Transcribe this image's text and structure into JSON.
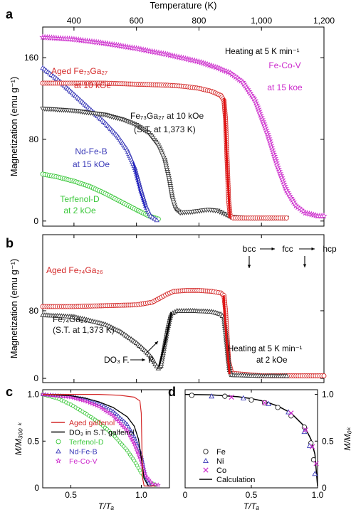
{
  "figure": {
    "panel_labels": [
      "a",
      "b",
      "c",
      "d"
    ]
  },
  "chart_data": [
    {
      "id": "a",
      "type": "scatter",
      "xlabel": "Temperature (K)",
      "ylabel": "Magnetization (emu g⁻¹)",
      "xlim": [
        300,
        1200
      ],
      "ylim": [
        -5,
        190
      ],
      "xticks": [
        400,
        600,
        800,
        1000,
        1200
      ],
      "xtick_labels": [
        "400",
        "600",
        "800",
        "1,000",
        "1,200"
      ],
      "yticks": [
        0,
        80,
        160
      ],
      "annotation": "Heating at 5 K min⁻¹",
      "series": [
        {
          "label_lines": [
            "Aged Fe₇₃Ga₂₇",
            "at 10 kOe"
          ],
          "color": "#d42a2a",
          "marker": "circle",
          "points": [
            [
              300,
              135
            ],
            [
              400,
              135
            ],
            [
              500,
              135
            ],
            [
              600,
              134
            ],
            [
              700,
              133
            ],
            [
              750,
              132
            ],
            [
              800,
              130
            ],
            [
              840,
              127
            ],
            [
              870,
              123
            ],
            [
              880,
              118
            ],
            [
              885,
              100
            ],
            [
              890,
              60
            ],
            [
              895,
              20
            ],
            [
              900,
              5
            ],
            [
              910,
              3
            ],
            [
              1000,
              3
            ],
            [
              1080,
              3
            ]
          ]
        },
        {
          "label_lines": [
            "Fe₇₃Ga₂₇ at 10 kOe",
            "(S.T. at 1,373 K)"
          ],
          "color": "#333333",
          "marker": "triangle-down",
          "points": [
            [
              300,
              110
            ],
            [
              400,
              108
            ],
            [
              500,
              104
            ],
            [
              560,
              99
            ],
            [
              600,
              94
            ],
            [
              640,
              86
            ],
            [
              670,
              74
            ],
            [
              690,
              60
            ],
            [
              705,
              40
            ],
            [
              715,
              22
            ],
            [
              725,
              12
            ],
            [
              740,
              8
            ],
            [
              780,
              9
            ],
            [
              830,
              11
            ],
            [
              860,
              10
            ],
            [
              880,
              7
            ],
            [
              900,
              4
            ],
            [
              950,
              3
            ],
            [
              1080,
              3
            ]
          ]
        },
        {
          "label_lines": [
            "Nd-Fe-B",
            "at 15 kOe"
          ],
          "color": "#3a3ab8",
          "marker": "triangle-up",
          "points": [
            [
              300,
              150
            ],
            [
              350,
              138
            ],
            [
              400,
              124
            ],
            [
              450,
              110
            ],
            [
              500,
              96
            ],
            [
              540,
              83
            ],
            [
              570,
              70
            ],
            [
              595,
              52
            ],
            [
              615,
              30
            ],
            [
              630,
              15
            ],
            [
              645,
              5
            ],
            [
              665,
              1
            ]
          ]
        },
        {
          "label_lines": [
            "Terfenol-D",
            "at 2 kOe"
          ],
          "color": "#3cc83c",
          "marker": "circle",
          "points": [
            [
              300,
              46
            ],
            [
              350,
              43
            ],
            [
              400,
              39
            ],
            [
              450,
              34
            ],
            [
              500,
              27
            ],
            [
              550,
              19
            ],
            [
              600,
              11
            ],
            [
              640,
              5
            ],
            [
              670,
              2
            ]
          ]
        },
        {
          "label_lines": [
            "Fe-Co-V",
            "at 15 koe"
          ],
          "color": "#cc2acc",
          "marker": "star",
          "points": [
            [
              300,
              180
            ],
            [
              400,
              178
            ],
            [
              500,
              174
            ],
            [
              600,
              169
            ],
            [
              700,
              163
            ],
            [
              800,
              156
            ],
            [
              860,
              150
            ],
            [
              900,
              145
            ],
            [
              940,
              136
            ],
            [
              980,
              118
            ],
            [
              1020,
              85
            ],
            [
              1050,
              55
            ],
            [
              1080,
              30
            ],
            [
              1110,
              15
            ],
            [
              1140,
              8
            ],
            [
              1180,
              5
            ],
            [
              1200,
              5
            ]
          ]
        }
      ]
    },
    {
      "id": "b",
      "type": "scatter",
      "ylabel": "Magnetization (emu g⁻¹)",
      "xlim": [
        300,
        1200
      ],
      "ylim": [
        -5,
        170
      ],
      "yticks": [
        0,
        80
      ],
      "annotation_lines": [
        "Heating at 5 K min⁻¹",
        "at 2 kOe"
      ],
      "phases": [
        "bcc",
        "fcc",
        "hcp"
      ],
      "pointer": [
        "DO₃ F.",
        "P."
      ],
      "series": [
        {
          "label": "Aged Fe₇₄Ga₂₆",
          "color": "#d42a2a",
          "marker": "circle",
          "points": [
            [
              300,
              85
            ],
            [
              400,
              85
            ],
            [
              500,
              86
            ],
            [
              600,
              87
            ],
            [
              650,
              90
            ],
            [
              680,
              96
            ],
            [
              700,
              100
            ],
            [
              720,
              103
            ],
            [
              760,
              104
            ],
            [
              800,
              104
            ],
            [
              840,
              103
            ],
            [
              870,
              101
            ],
            [
              880,
              98
            ],
            [
              885,
              80
            ],
            [
              890,
              50
            ],
            [
              895,
              20
            ],
            [
              905,
              6
            ],
            [
              1000,
              3
            ],
            [
              1200,
              3
            ]
          ]
        },
        {
          "label_lines": [
            "Fe₇₄Ga₂₆",
            "(S.T. at 1,373 K)"
          ],
          "color": "#333333",
          "marker": "triangle-up",
          "points": [
            [
              300,
              75
            ],
            [
              400,
              73
            ],
            [
              500,
              64
            ],
            [
              550,
              55
            ],
            [
              600,
              42
            ],
            [
              630,
              32
            ],
            [
              650,
              24
            ],
            [
              660,
              17
            ],
            [
              670,
              12
            ],
            [
              678,
              15
            ],
            [
              690,
              40
            ],
            [
              700,
              60
            ],
            [
              710,
              76
            ],
            [
              730,
              80
            ],
            [
              780,
              80
            ],
            [
              840,
              79
            ],
            [
              870,
              76
            ],
            [
              880,
              72
            ],
            [
              885,
              55
            ],
            [
              892,
              30
            ],
            [
              898,
              10
            ],
            [
              905,
              4
            ],
            [
              1000,
              3
            ],
            [
              1080,
              3
            ]
          ]
        }
      ]
    },
    {
      "id": "c",
      "type": "line",
      "xlabel": "T/Tₐ",
      "ylabel": "M/M₃₀₀ ₖ",
      "xlim": [
        0.3,
        1.2
      ],
      "ylim": [
        0,
        1.05
      ],
      "xticks": [
        0.5,
        1.0
      ],
      "xtick_labels": [
        "0.5",
        "1.0"
      ],
      "yticks": [
        0,
        0.5,
        1.0
      ],
      "ytick_labels": [
        "0",
        "0.5",
        "1.0"
      ],
      "legend": "top-left",
      "series": [
        {
          "name": "Aged galfenol",
          "color": "#d42a2a",
          "marker": "none",
          "points": [
            [
              0.3,
              1
            ],
            [
              0.5,
              1
            ],
            [
              0.7,
              1
            ],
            [
              0.85,
              0.99
            ],
            [
              0.95,
              0.97
            ],
            [
              0.99,
              0.93
            ],
            [
              1.0,
              0.8
            ],
            [
              1.005,
              0.4
            ],
            [
              1.01,
              0.1
            ],
            [
              1.02,
              0.02
            ],
            [
              1.1,
              0.02
            ]
          ]
        },
        {
          "name": "DO₃ in S.T. galfenol",
          "color": "#000000",
          "marker": "none",
          "points": [
            [
              0.3,
              1
            ],
            [
              0.5,
              0.985
            ],
            [
              0.6,
              0.96
            ],
            [
              0.7,
              0.92
            ],
            [
              0.8,
              0.86
            ],
            [
              0.9,
              0.76
            ],
            [
              0.95,
              0.66
            ],
            [
              0.98,
              0.52
            ],
            [
              1.0,
              0.32
            ],
            [
              1.02,
              0.1
            ],
            [
              1.05,
              0.02
            ],
            [
              1.1,
              0.02
            ]
          ]
        },
        {
          "name": "Terfenol-D",
          "color": "#3cc83c",
          "marker": "circle",
          "points": [
            [
              0.3,
              1
            ],
            [
              0.4,
              0.96
            ],
            [
              0.5,
              0.89
            ],
            [
              0.6,
              0.8
            ],
            [
              0.7,
              0.7
            ],
            [
              0.8,
              0.57
            ],
            [
              0.9,
              0.4
            ],
            [
              0.95,
              0.29
            ],
            [
              1.0,
              0.16
            ],
            [
              1.05,
              0.07
            ],
            [
              1.1,
              0.03
            ]
          ]
        },
        {
          "name": "Nd-Fe-B",
          "color": "#3a3ab8",
          "marker": "triangle-up",
          "points": [
            [
              0.3,
              1
            ],
            [
              0.5,
              0.98
            ],
            [
              0.6,
              0.95
            ],
            [
              0.7,
              0.9
            ],
            [
              0.8,
              0.82
            ],
            [
              0.9,
              0.68
            ],
            [
              0.95,
              0.55
            ],
            [
              1.0,
              0.35
            ],
            [
              1.03,
              0.12
            ],
            [
              1.06,
              0.03
            ]
          ]
        },
        {
          "name": "Fe-Co-V",
          "color": "#cc2acc",
          "marker": "star",
          "points": [
            [
              0.3,
              1
            ],
            [
              0.5,
              0.97
            ],
            [
              0.6,
              0.93
            ],
            [
              0.7,
              0.87
            ],
            [
              0.8,
              0.77
            ],
            [
              0.9,
              0.61
            ],
            [
              0.95,
              0.47
            ],
            [
              1.0,
              0.28
            ],
            [
              1.03,
              0.13
            ],
            [
              1.08,
              0.04
            ],
            [
              1.12,
              0.03
            ]
          ]
        }
      ]
    },
    {
      "id": "d",
      "type": "scatter",
      "xlabel": "T/Tₐ",
      "ylabel": "M/M₀ₖ",
      "xlim": [
        0,
        1.0
      ],
      "ylim": [
        0,
        1.05
      ],
      "xticks": [
        0,
        0.5,
        1.0
      ],
      "xtick_labels": [
        "0",
        "0.5",
        "1.0"
      ],
      "yticks": [
        0,
        0.5,
        1.0
      ],
      "ytick_labels": [
        "0",
        "0.5",
        "1.0"
      ],
      "legend": "bottom-left",
      "series": [
        {
          "name": "Fe",
          "color": "#222222",
          "marker": "circle",
          "points": [
            [
              0.05,
              0.99
            ],
            [
              0.3,
              0.98
            ],
            [
              0.5,
              0.94
            ],
            [
              0.6,
              0.91
            ],
            [
              0.7,
              0.86
            ],
            [
              0.8,
              0.77
            ],
            [
              0.9,
              0.65
            ],
            [
              0.95,
              0.48
            ],
            [
              0.97,
              0.3
            ]
          ]
        },
        {
          "name": "Ni",
          "color": "#3a3ab8",
          "marker": "triangle-up",
          "points": [
            [
              0.2,
              0.98
            ],
            [
              0.44,
              0.96
            ],
            [
              0.63,
              0.9
            ],
            [
              0.78,
              0.81
            ],
            [
              0.9,
              0.6
            ],
            [
              0.94,
              0.45
            ],
            [
              0.98,
              0.15
            ]
          ]
        },
        {
          "name": "Co",
          "color": "#cc2acc",
          "marker": "cross",
          "points": [
            [
              0.35,
              0.97
            ],
            [
              0.6,
              0.91
            ],
            [
              0.8,
              0.8
            ],
            [
              0.91,
              0.62
            ],
            [
              0.96,
              0.44
            ],
            [
              0.99,
              0.26
            ]
          ]
        },
        {
          "name": "Calculation",
          "color": "#000000",
          "marker": "none",
          "points": [
            [
              0,
              1
            ],
            [
              0.2,
              0.995
            ],
            [
              0.4,
              0.975
            ],
            [
              0.5,
              0.955
            ],
            [
              0.6,
              0.925
            ],
            [
              0.7,
              0.875
            ],
            [
              0.8,
              0.8
            ],
            [
              0.9,
              0.66
            ],
            [
              0.95,
              0.52
            ],
            [
              0.98,
              0.36
            ],
            [
              1.0,
              0.02
            ]
          ]
        }
      ]
    }
  ]
}
